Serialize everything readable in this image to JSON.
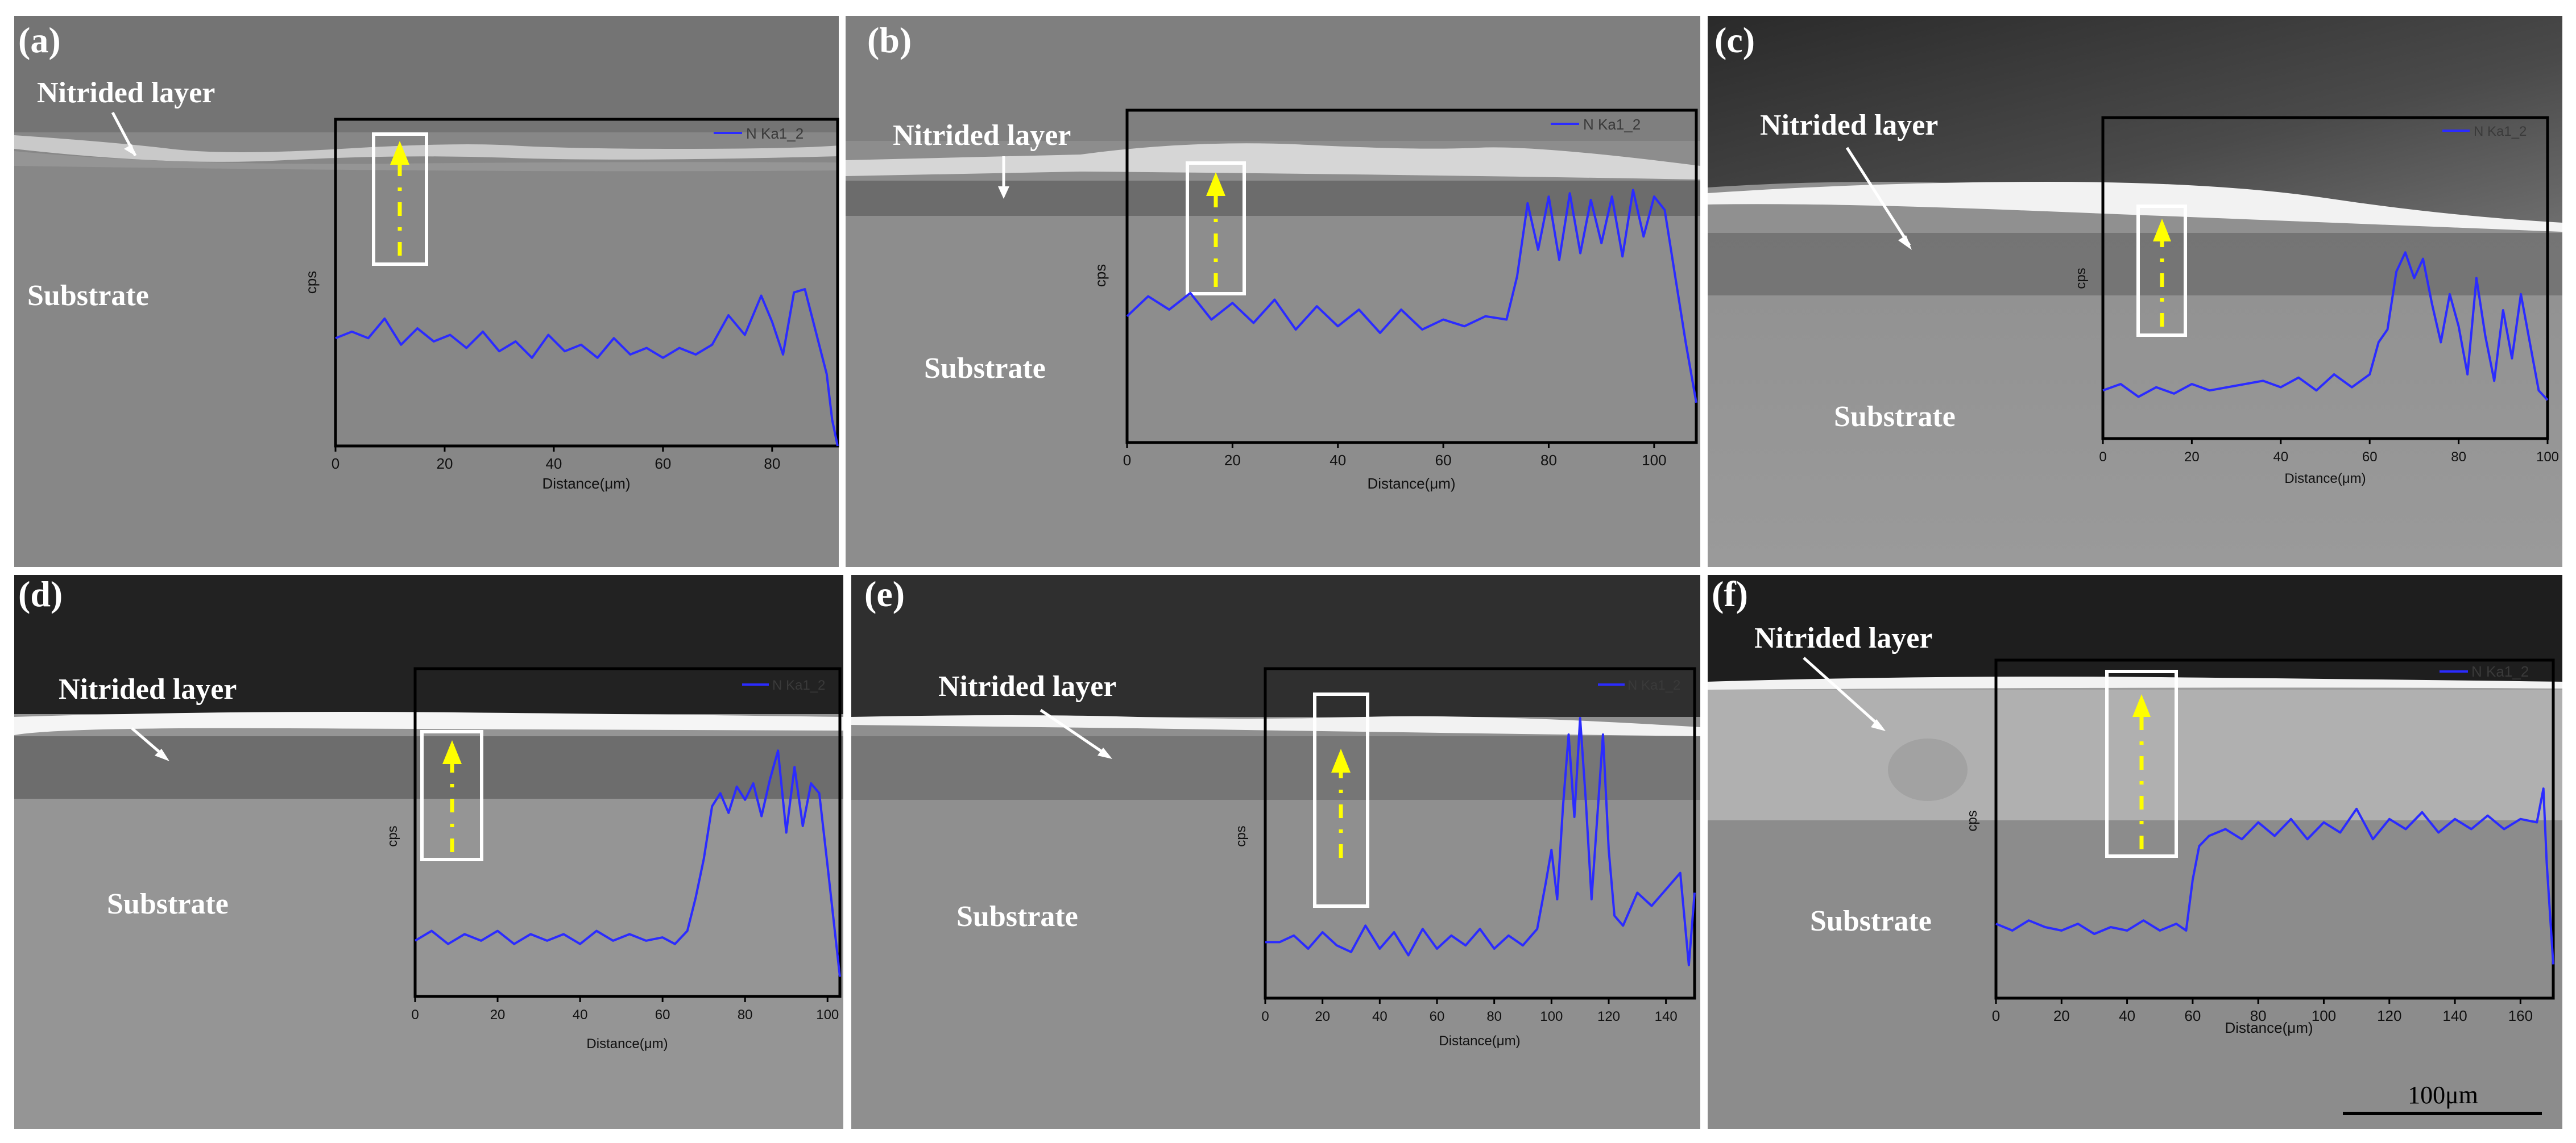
{
  "figure": {
    "scale_bar_label": "100μm",
    "panels": [
      {
        "label": "(a)",
        "nitrided_label": "Nitrided layer",
        "substrate_label": "Substrate",
        "chart_data": {
          "type": "line",
          "xlabel": "Distance(μm)",
          "ylabel": "cps",
          "legend": "N Ka1_2",
          "legend_position": "top-right",
          "xlim": [
            0,
            92
          ],
          "ylim": [
            0,
            1
          ],
          "xticks": [
            0,
            20,
            40,
            60,
            80
          ],
          "series": [
            {
              "name": "N Ka1_2",
              "color": "#2b2bff",
              "x": [
                0,
                3,
                6,
                9,
                12,
                15,
                18,
                21,
                24,
                27,
                30,
                33,
                36,
                39,
                42,
                45,
                48,
                51,
                54,
                57,
                60,
                63,
                66,
                69,
                72,
                75,
                78,
                80,
                82,
                84,
                86,
                88,
                90,
                91,
                92
              ],
              "y": [
                0.33,
                0.35,
                0.33,
                0.39,
                0.31,
                0.36,
                0.32,
                0.34,
                0.3,
                0.35,
                0.29,
                0.32,
                0.27,
                0.34,
                0.29,
                0.31,
                0.27,
                0.33,
                0.28,
                0.3,
                0.27,
                0.3,
                0.28,
                0.31,
                0.4,
                0.34,
                0.46,
                0.38,
                0.28,
                0.47,
                0.48,
                0.35,
                0.22,
                0.08,
                0.0
              ]
            }
          ]
        }
      },
      {
        "label": "(b)",
        "nitrided_label": "Nitrided layer",
        "substrate_label": "Substrate",
        "chart_data": {
          "type": "line",
          "xlabel": "Distance(μm)",
          "ylabel": "cps",
          "legend": "N Ka1_2",
          "legend_position": "top-right",
          "xlim": [
            0,
            108
          ],
          "ylim": [
            0,
            1
          ],
          "xticks": [
            0,
            20,
            40,
            60,
            80,
            100
          ],
          "series": [
            {
              "name": "N Ka1_2",
              "color": "#2b2bff",
              "x": [
                0,
                4,
                8,
                12,
                16,
                20,
                24,
                28,
                32,
                36,
                40,
                44,
                48,
                52,
                56,
                60,
                64,
                68,
                72,
                74,
                76,
                78,
                80,
                82,
                84,
                86,
                88,
                90,
                92,
                94,
                96,
                98,
                100,
                102,
                104,
                106,
                108
              ],
              "y": [
                0.38,
                0.44,
                0.4,
                0.45,
                0.37,
                0.42,
                0.36,
                0.43,
                0.34,
                0.41,
                0.35,
                0.4,
                0.33,
                0.4,
                0.34,
                0.37,
                0.35,
                0.38,
                0.37,
                0.5,
                0.72,
                0.58,
                0.74,
                0.55,
                0.75,
                0.57,
                0.73,
                0.6,
                0.74,
                0.56,
                0.76,
                0.62,
                0.74,
                0.7,
                0.5,
                0.3,
                0.12
              ]
            }
          ]
        }
      },
      {
        "label": "(c)",
        "nitrided_label": "Nitrided layer",
        "substrate_label": "Substrate",
        "chart_data": {
          "type": "line",
          "xlabel": "Distance(μm)",
          "ylabel": "cps",
          "legend": "N Ka1_2",
          "legend_position": "top-right",
          "xlim": [
            0,
            100
          ],
          "ylim": [
            0,
            1
          ],
          "xticks": [
            0,
            20,
            40,
            60,
            80,
            100
          ],
          "series": [
            {
              "name": "N Ka1_2",
              "color": "#2b2bff",
              "x": [
                0,
                4,
                8,
                12,
                16,
                20,
                24,
                28,
                32,
                36,
                40,
                44,
                48,
                52,
                56,
                60,
                62,
                64,
                66,
                68,
                70,
                72,
                74,
                76,
                78,
                80,
                82,
                84,
                86,
                88,
                90,
                92,
                94,
                96,
                98,
                100
              ],
              "y": [
                0.15,
                0.17,
                0.13,
                0.16,
                0.14,
                0.17,
                0.15,
                0.16,
                0.17,
                0.18,
                0.16,
                0.19,
                0.15,
                0.2,
                0.16,
                0.2,
                0.3,
                0.34,
                0.52,
                0.58,
                0.5,
                0.56,
                0.42,
                0.3,
                0.45,
                0.35,
                0.2,
                0.5,
                0.32,
                0.18,
                0.4,
                0.25,
                0.45,
                0.3,
                0.15,
                0.12
              ]
            }
          ]
        }
      },
      {
        "label": "(d)",
        "nitrided_label": "Nitrided layer",
        "substrate_label": "Substrate",
        "chart_data": {
          "type": "line",
          "xlabel": "Distance(μm)",
          "ylabel": "cps",
          "legend": "N Ka1_2",
          "legend_position": "top-right",
          "xlim": [
            0,
            103
          ],
          "ylim": [
            0,
            1
          ],
          "xticks": [
            0,
            20,
            40,
            60,
            80,
            100
          ],
          "series": [
            {
              "name": "N Ka1_2",
              "color": "#2b2bff",
              "x": [
                0,
                4,
                8,
                12,
                16,
                20,
                24,
                28,
                32,
                36,
                40,
                44,
                48,
                52,
                56,
                60,
                63,
                66,
                68,
                70,
                72,
                74,
                76,
                78,
                80,
                82,
                84,
                86,
                88,
                90,
                92,
                94,
                96,
                98,
                100,
                103
              ],
              "y": [
                0.17,
                0.2,
                0.16,
                0.19,
                0.17,
                0.2,
                0.16,
                0.19,
                0.17,
                0.19,
                0.16,
                0.2,
                0.17,
                0.19,
                0.17,
                0.18,
                0.16,
                0.2,
                0.3,
                0.42,
                0.58,
                0.62,
                0.56,
                0.64,
                0.6,
                0.65,
                0.55,
                0.66,
                0.75,
                0.5,
                0.7,
                0.52,
                0.65,
                0.62,
                0.4,
                0.06
              ]
            }
          ]
        }
      },
      {
        "label": "(e)",
        "nitrided_label": "Nitrided layer",
        "substrate_label": "Substrate",
        "chart_data": {
          "type": "line",
          "xlabel": "Distance(μm)",
          "ylabel": "cps",
          "legend": "N Ka1_2",
          "legend_position": "top-right",
          "xlim": [
            0,
            150
          ],
          "ylim": [
            0,
            1
          ],
          "xticks": [
            0,
            20,
            40,
            60,
            80,
            100,
            120,
            140
          ],
          "series": [
            {
              "name": "N Ka1_2",
              "color": "#2b2bff",
              "x": [
                0,
                5,
                10,
                15,
                20,
                25,
                30,
                35,
                40,
                45,
                50,
                55,
                60,
                65,
                70,
                75,
                80,
                85,
                90,
                95,
                98,
                100,
                102,
                104,
                106,
                108,
                110,
                112,
                114,
                116,
                118,
                120,
                122,
                125,
                130,
                135,
                140,
                145,
                148,
                150
              ],
              "y": [
                0.17,
                0.17,
                0.19,
                0.15,
                0.2,
                0.16,
                0.14,
                0.22,
                0.15,
                0.2,
                0.13,
                0.21,
                0.15,
                0.19,
                0.16,
                0.21,
                0.15,
                0.19,
                0.16,
                0.21,
                0.35,
                0.45,
                0.3,
                0.58,
                0.8,
                0.55,
                0.85,
                0.6,
                0.3,
                0.55,
                0.8,
                0.45,
                0.25,
                0.22,
                0.32,
                0.28,
                0.33,
                0.38,
                0.1,
                0.32
              ]
            }
          ]
        }
      },
      {
        "label": "(f)",
        "nitrided_label": "Nitrided layer",
        "substrate_label": "Substrate",
        "chart_data": {
          "type": "line",
          "xlabel": "Distance(μm)",
          "ylabel": "cps",
          "legend": "N Ka1_2",
          "legend_position": "top-right",
          "xlim": [
            0,
            170
          ],
          "ylim": [
            0,
            1
          ],
          "xticks": [
            0,
            20,
            40,
            60,
            80,
            100,
            120,
            140,
            160
          ],
          "series": [
            {
              "name": "N Ka1_2",
              "color": "#2b2bff",
              "x": [
                0,
                5,
                10,
                15,
                20,
                25,
                30,
                35,
                40,
                45,
                50,
                55,
                58,
                60,
                62,
                65,
                70,
                75,
                80,
                85,
                90,
                95,
                100,
                105,
                110,
                115,
                120,
                125,
                130,
                135,
                140,
                145,
                150,
                155,
                160,
                165,
                167,
                168,
                170
              ],
              "y": [
                0.22,
                0.2,
                0.23,
                0.21,
                0.2,
                0.22,
                0.19,
                0.21,
                0.2,
                0.23,
                0.2,
                0.22,
                0.2,
                0.35,
                0.45,
                0.48,
                0.5,
                0.47,
                0.52,
                0.48,
                0.53,
                0.47,
                0.52,
                0.49,
                0.56,
                0.47,
                0.53,
                0.5,
                0.55,
                0.49,
                0.53,
                0.5,
                0.54,
                0.5,
                0.53,
                0.52,
                0.62,
                0.4,
                0.1
              ]
            }
          ]
        }
      }
    ]
  }
}
